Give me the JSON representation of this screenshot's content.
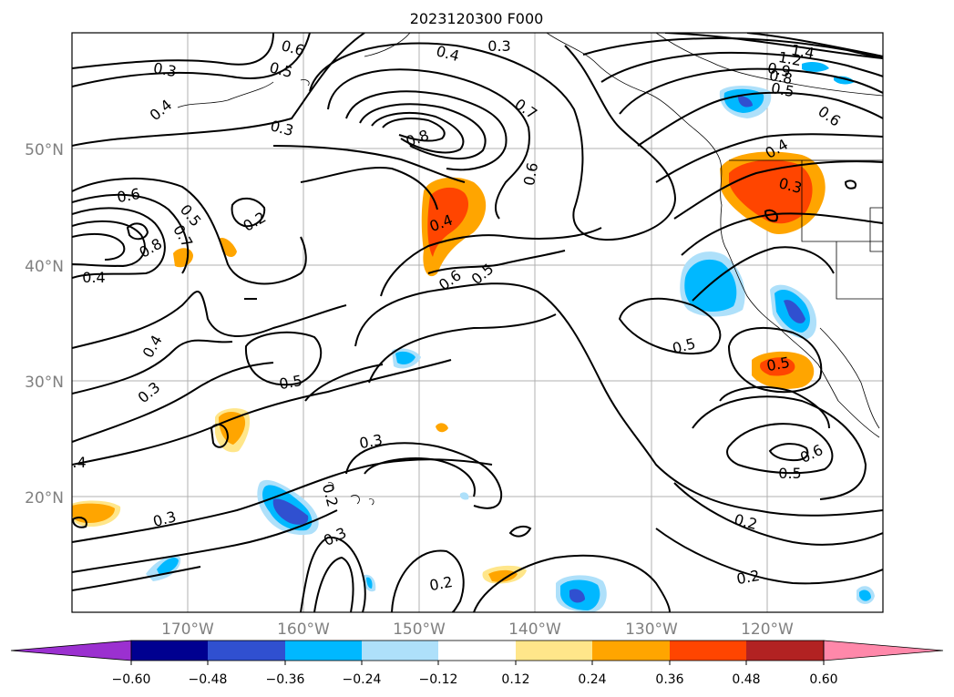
{
  "title": "2023120300 F000",
  "lat_labels": [
    "50°N",
    "40°N",
    "30°N",
    "20°N"
  ],
  "lon_labels": [
    "170°W",
    "160°W",
    "150°W",
    "140°W",
    "130°W",
    "120°W"
  ],
  "colorbar": {
    "ticks": [
      "−0.60",
      "−0.48",
      "−0.36",
      "−0.24",
      "−0.12",
      "0.12",
      "0.24",
      "0.36",
      "0.48",
      "0.60"
    ],
    "colors": [
      "#9b30d0",
      "#000090",
      "#3050d0",
      "#00b8ff",
      "#aee0fa",
      "#ffffff",
      "#ffe68a",
      "#ffa500",
      "#ff4500",
      "#b22222",
      "#ff88aa"
    ]
  },
  "contour_labels": [
    {
      "text": "0.3"
    },
    {
      "text": "0.6"
    },
    {
      "text": "0.5"
    },
    {
      "text": "0.4"
    },
    {
      "text": "0.3"
    },
    {
      "text": "0.4"
    },
    {
      "text": "0.3"
    },
    {
      "text": "0.8"
    },
    {
      "text": "0.7"
    },
    {
      "text": "0.6"
    },
    {
      "text": "1.4"
    },
    {
      "text": "1.2"
    },
    {
      "text": "0.9"
    },
    {
      "text": "0.8"
    },
    {
      "text": "0.5"
    },
    {
      "text": "0.6"
    },
    {
      "text": "0.4"
    },
    {
      "text": "0.3"
    },
    {
      "text": "0.6"
    },
    {
      "text": "0.5"
    },
    {
      "text": "0.2"
    },
    {
      "text": "0.7"
    },
    {
      "text": "0.8"
    },
    {
      "text": "0.4"
    },
    {
      "text": "0.4"
    },
    {
      "text": "0.6"
    },
    {
      "text": "0.5"
    },
    {
      "text": "0.5"
    },
    {
      "text": "0.4"
    },
    {
      "text": "0.3"
    },
    {
      "text": "0.5"
    },
    {
      "text": "0.5"
    },
    {
      "text": ".4"
    },
    {
      "text": "0.3"
    },
    {
      "text": "0.2"
    },
    {
      "text": "0.3"
    },
    {
      "text": "0.3"
    },
    {
      "text": "0.2"
    },
    {
      "text": "0.2"
    },
    {
      "text": "0.6"
    },
    {
      "text": "0.5"
    },
    {
      "text": "0.2"
    }
  ]
}
